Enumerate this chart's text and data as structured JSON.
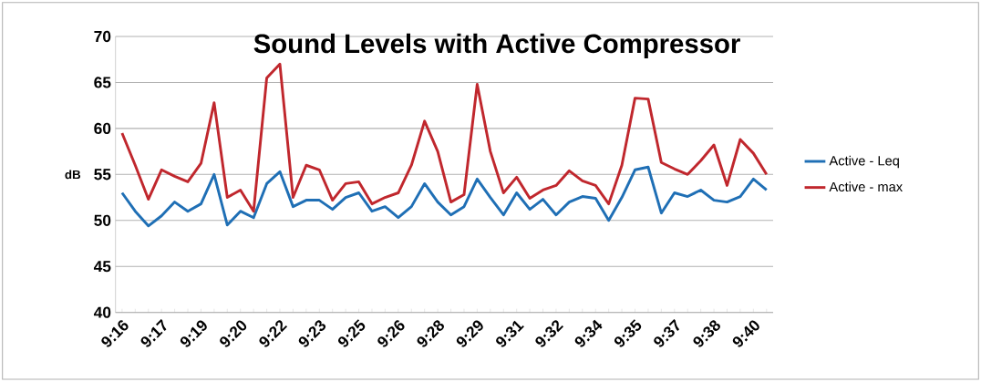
{
  "chart_data": {
    "type": "line",
    "title": "Sound Levels with Active Compressor",
    "ylabel": "dB",
    "categories": [
      "9:16",
      null,
      null,
      "9:17",
      null,
      null,
      "9:19",
      null,
      null,
      "9:20",
      null,
      null,
      "9:22",
      null,
      null,
      "9:23",
      null,
      null,
      "9:25",
      null,
      null,
      "9:26",
      null,
      null,
      "9:28",
      null,
      null,
      "9:29",
      null,
      null,
      "9:31",
      null,
      null,
      "9:32",
      null,
      null,
      "9:34",
      null,
      null,
      "9:35",
      null,
      null,
      "9:37",
      null,
      null,
      "9:38",
      null,
      null,
      "9:40",
      null
    ],
    "series": [
      {
        "name": "Active - Leq",
        "color": "#1f6fb5",
        "values": [
          53,
          51,
          49.4,
          50.5,
          52,
          51,
          51.8,
          55,
          49.5,
          51,
          50.3,
          54,
          55.3,
          51.5,
          52.2,
          52.2,
          51.2,
          52.5,
          53,
          51,
          51.5,
          50.3,
          51.5,
          54,
          52,
          50.6,
          51.5,
          54.5,
          52.5,
          50.6,
          53,
          51.2,
          52.3,
          50.6,
          52,
          52.6,
          52.4,
          50,
          52.5,
          55.5,
          55.8,
          50.8,
          53,
          52.6,
          53.3,
          52.2,
          52,
          52.6,
          54.5,
          53.3
        ]
      },
      {
        "name": "Active - max",
        "color": "#c0272d",
        "values": [
          59.5,
          56,
          52.3,
          55.5,
          54.8,
          54.2,
          56.2,
          62.8,
          52.5,
          53.3,
          51,
          65.5,
          67,
          52.5,
          56,
          55.5,
          52.2,
          54,
          54.2,
          51.8,
          52.5,
          53,
          56,
          60.8,
          57.5,
          52,
          52.8,
          64.8,
          57.5,
          53,
          54.7,
          52.4,
          53.3,
          53.8,
          55.4,
          54.3,
          53.8,
          51.8,
          56,
          63.3,
          63.2,
          56.3,
          55.6,
          55,
          56.5,
          58.2,
          53.8,
          58.8,
          57.3,
          55
        ]
      }
    ],
    "ylim": [
      40,
      70
    ],
    "yticks": [
      40,
      45,
      50,
      55,
      60,
      65,
      70
    ],
    "grid": "y",
    "legend": "right"
  }
}
